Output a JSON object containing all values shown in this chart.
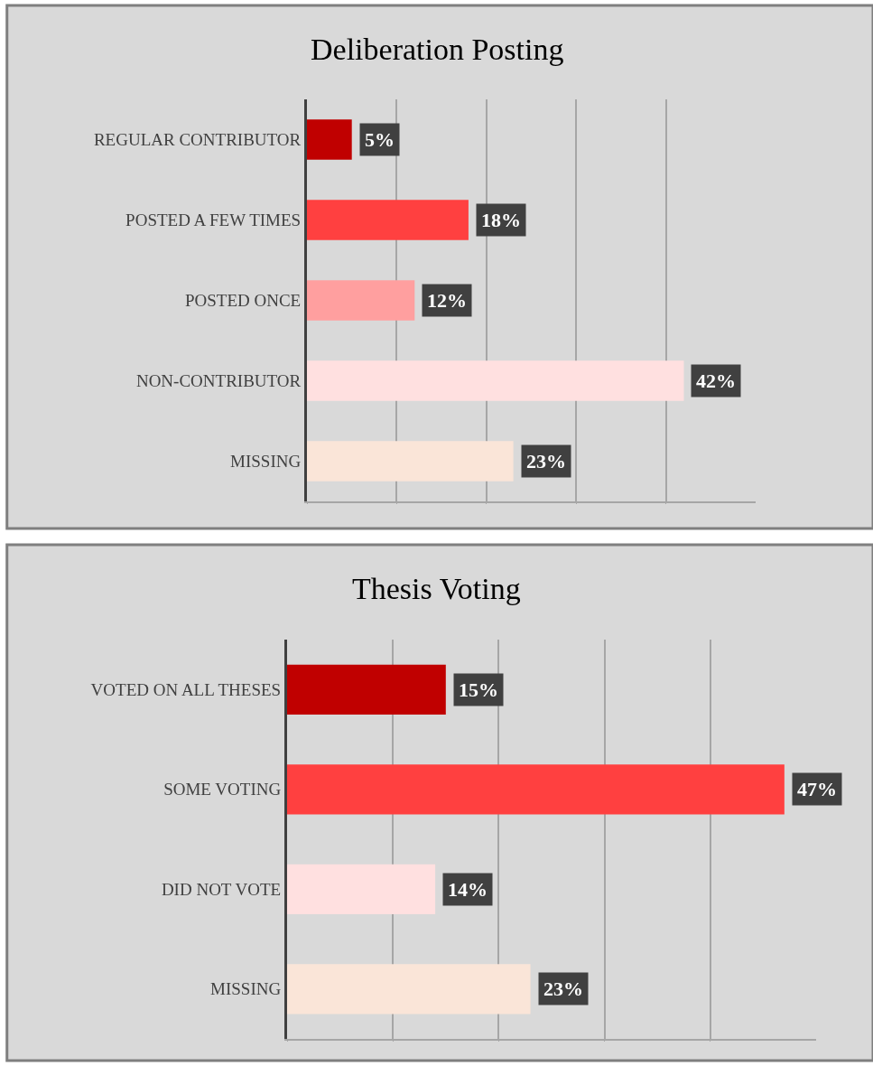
{
  "chart_data": [
    {
      "type": "bar",
      "orientation": "horizontal",
      "title": "Deliberation Posting",
      "categories": [
        "REGULAR CONTRIBUTOR",
        "POSTED A FEW TIMES",
        "POSTED ONCE",
        "NON-CONTRIBUTOR",
        "MISSING"
      ],
      "values": [
        5,
        18,
        12,
        42,
        23
      ],
      "colors": [
        "#c00000",
        "#ff4040",
        "#ff9f9f",
        "#ffe0e0",
        "#fae5d8"
      ],
      "value_labels": [
        "5%",
        "18%",
        "12%",
        "42%",
        "23%"
      ],
      "xlim": [
        0,
        50
      ],
      "xticks": [
        {
          "value": 0,
          "label": null
        },
        {
          "value": 10,
          "label": null
        },
        {
          "value": 20,
          "label": null
        },
        {
          "value": 30,
          "label": null
        },
        {
          "value": 40,
          "label": null
        }
      ],
      "grid": "x",
      "tick_labels": "y"
    },
    {
      "type": "bar",
      "orientation": "horizontal",
      "title": "Thesis Voting",
      "categories": [
        "VOTED ON ALL THESES",
        "SOME VOTING",
        "DID NOT VOTE",
        "MISSING"
      ],
      "values": [
        15,
        47,
        14,
        23
      ],
      "colors": [
        "#c00000",
        "#ff4040",
        "#ffe0e0",
        "#fae5d8"
      ],
      "value_labels": [
        "15%",
        "47%",
        "14%",
        "23%"
      ],
      "xlim": [
        0,
        50
      ],
      "xticks": [
        {
          "value": 0,
          "label": null
        },
        {
          "value": 10,
          "label": null
        },
        {
          "value": 20,
          "label": null
        },
        {
          "value": 30,
          "label": null
        },
        {
          "value": 40,
          "label": null
        }
      ],
      "grid": "x",
      "tick_labels": "y"
    }
  ]
}
